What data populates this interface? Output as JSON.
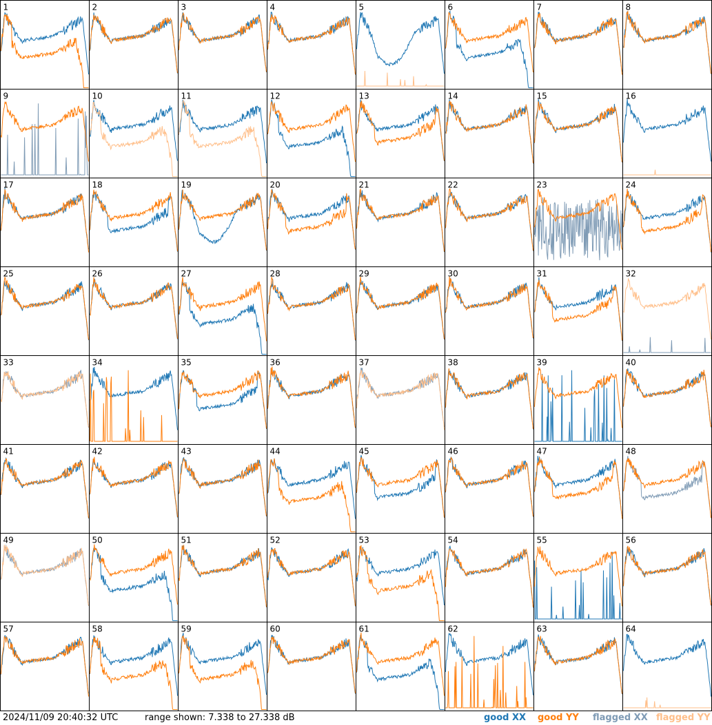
{
  "chart_data": {
    "type": "line",
    "layout": "8x8 small multiples",
    "timestamp": "2024/11/09 20:40:32 UTC",
    "range_text": "range shown: 7.338 to 27.338 dB",
    "ylim": [
      7.338,
      27.338
    ],
    "units": "dB",
    "legend": [
      {
        "key": "good_xx",
        "label": "good XX",
        "color": "#1f77b4"
      },
      {
        "key": "good_yy",
        "label": "good YY",
        "color": "#ff7f0e"
      },
      {
        "key": "flagged_xx",
        "label": "flagged XX",
        "color": "#7f9bb5"
      },
      {
        "key": "flagged_yy",
        "label": "flagged YY",
        "color": "#ffbf8a"
      }
    ],
    "panels": [
      {
        "id": "1",
        "xx": "good",
        "yy": "good",
        "shape_xx": "normal",
        "shape_yy": "dropout"
      },
      {
        "id": "2",
        "xx": "good",
        "yy": "good",
        "shape_xx": "normal",
        "shape_yy": "normal"
      },
      {
        "id": "3",
        "xx": "good",
        "yy": "good",
        "shape_xx": "normal",
        "shape_yy": "normal"
      },
      {
        "id": "4",
        "xx": "good",
        "yy": "good",
        "shape_xx": "normal",
        "shape_yy": "normal"
      },
      {
        "id": "5",
        "xx": "good",
        "yy": "flagged",
        "shape_xx": "dip",
        "shape_yy": "flat"
      },
      {
        "id": "6",
        "xx": "good",
        "yy": "good",
        "shape_xx": "dropout",
        "shape_yy": "normal"
      },
      {
        "id": "7",
        "xx": "good",
        "yy": "good",
        "shape_xx": "normal",
        "shape_yy": "normal"
      },
      {
        "id": "8",
        "xx": "good",
        "yy": "good",
        "shape_xx": "normal",
        "shape_yy": "normal"
      },
      {
        "id": "9",
        "xx": "flagged",
        "yy": "good",
        "shape_xx": "spiky_low",
        "shape_yy": "normal"
      },
      {
        "id": "10",
        "xx": "good",
        "yy": "flagged",
        "shape_xx": "normal",
        "shape_yy": "dropout"
      },
      {
        "id": "11",
        "xx": "good",
        "yy": "flagged",
        "shape_xx": "normal",
        "shape_yy": "dropout"
      },
      {
        "id": "12",
        "xx": "good",
        "yy": "good",
        "shape_xx": "dropout",
        "shape_yy": "normal"
      },
      {
        "id": "13",
        "xx": "good",
        "yy": "good",
        "shape_xx": "normal",
        "shape_yy": "low"
      },
      {
        "id": "14",
        "xx": "good",
        "yy": "good",
        "shape_xx": "normal",
        "shape_yy": "normal"
      },
      {
        "id": "15",
        "xx": "good",
        "yy": "good",
        "shape_xx": "normal",
        "shape_yy": "normal"
      },
      {
        "id": "16",
        "xx": "good",
        "yy": "flagged",
        "shape_xx": "normal",
        "shape_yy": "flat"
      },
      {
        "id": "17",
        "xx": "good",
        "yy": "good",
        "shape_xx": "normal",
        "shape_yy": "normal"
      },
      {
        "id": "18",
        "xx": "good",
        "yy": "good",
        "shape_xx": "low",
        "shape_yy": "normal"
      },
      {
        "id": "19",
        "xx": "good",
        "yy": "good",
        "shape_xx": "dip",
        "shape_yy": "normal"
      },
      {
        "id": "20",
        "xx": "good",
        "yy": "good",
        "shape_xx": "normal",
        "shape_yy": "low"
      },
      {
        "id": "21",
        "xx": "good",
        "yy": "good",
        "shape_xx": "normal",
        "shape_yy": "normal"
      },
      {
        "id": "22",
        "xx": "good",
        "yy": "good",
        "shape_xx": "normal",
        "shape_yy": "normal"
      },
      {
        "id": "23",
        "xx": "flagged",
        "yy": "good",
        "shape_xx": "spiky",
        "shape_yy": "normal"
      },
      {
        "id": "24",
        "xx": "good",
        "yy": "good",
        "shape_xx": "normal",
        "shape_yy": "low"
      },
      {
        "id": "25",
        "xx": "good",
        "yy": "good",
        "shape_xx": "normal",
        "shape_yy": "normal"
      },
      {
        "id": "26",
        "xx": "good",
        "yy": "good",
        "shape_xx": "normal",
        "shape_yy": "normal"
      },
      {
        "id": "27",
        "xx": "good",
        "yy": "good",
        "shape_xx": "dropout",
        "shape_yy": "normal"
      },
      {
        "id": "28",
        "xx": "good",
        "yy": "good",
        "shape_xx": "normal",
        "shape_yy": "normal"
      },
      {
        "id": "29",
        "xx": "good",
        "yy": "good",
        "shape_xx": "normal",
        "shape_yy": "normal"
      },
      {
        "id": "30",
        "xx": "good",
        "yy": "good",
        "shape_xx": "normal",
        "shape_yy": "normal"
      },
      {
        "id": "31",
        "xx": "good",
        "yy": "good",
        "shape_xx": "normal",
        "shape_yy": "low"
      },
      {
        "id": "32",
        "xx": "flagged",
        "yy": "flagged",
        "shape_xx": "flat",
        "shape_yy": "normal"
      },
      {
        "id": "33",
        "xx": "flagged",
        "yy": "flagged",
        "shape_xx": "normal",
        "shape_yy": "normal"
      },
      {
        "id": "34",
        "xx": "good",
        "yy": "good",
        "shape_xx": "normal",
        "shape_yy": "spiky_low"
      },
      {
        "id": "35",
        "xx": "good",
        "yy": "good",
        "shape_xx": "low",
        "shape_yy": "normal"
      },
      {
        "id": "36",
        "xx": "good",
        "yy": "good",
        "shape_xx": "normal",
        "shape_yy": "normal"
      },
      {
        "id": "37",
        "xx": "flagged",
        "yy": "flagged",
        "shape_xx": "normal",
        "shape_yy": "normal"
      },
      {
        "id": "38",
        "xx": "good",
        "yy": "good",
        "shape_xx": "normal",
        "shape_yy": "normal"
      },
      {
        "id": "39",
        "xx": "good",
        "yy": "good",
        "shape_xx": "spiky_low",
        "shape_yy": "normal"
      },
      {
        "id": "40",
        "xx": "good",
        "yy": "good",
        "shape_xx": "normal",
        "shape_yy": "normal"
      },
      {
        "id": "41",
        "xx": "good",
        "yy": "good",
        "shape_xx": "normal",
        "shape_yy": "normal"
      },
      {
        "id": "42",
        "xx": "good",
        "yy": "good",
        "shape_xx": "normal",
        "shape_yy": "normal"
      },
      {
        "id": "43",
        "xx": "good",
        "yy": "good",
        "shape_xx": "normal",
        "shape_yy": "normal"
      },
      {
        "id": "44",
        "xx": "good",
        "yy": "good",
        "shape_xx": "normal",
        "shape_yy": "dropout"
      },
      {
        "id": "45",
        "xx": "good",
        "yy": "good",
        "shape_xx": "low",
        "shape_yy": "normal"
      },
      {
        "id": "46",
        "xx": "good",
        "yy": "good",
        "shape_xx": "normal",
        "shape_yy": "normal"
      },
      {
        "id": "47",
        "xx": "good",
        "yy": "good",
        "shape_xx": "normal",
        "shape_yy": "low"
      },
      {
        "id": "48",
        "xx": "flagged",
        "yy": "good",
        "shape_xx": "low",
        "shape_yy": "normal"
      },
      {
        "id": "49",
        "xx": "flagged",
        "yy": "flagged",
        "shape_xx": "normal",
        "shape_yy": "normal"
      },
      {
        "id": "50",
        "xx": "good",
        "yy": "good",
        "shape_xx": "dropout",
        "shape_yy": "normal"
      },
      {
        "id": "51",
        "xx": "good",
        "yy": "good",
        "shape_xx": "normal",
        "shape_yy": "normal"
      },
      {
        "id": "52",
        "xx": "good",
        "yy": "good",
        "shape_xx": "normal",
        "shape_yy": "normal"
      },
      {
        "id": "53",
        "xx": "good",
        "yy": "good",
        "shape_xx": "normal",
        "shape_yy": "dropout"
      },
      {
        "id": "54",
        "xx": "good",
        "yy": "good",
        "shape_xx": "normal",
        "shape_yy": "normal"
      },
      {
        "id": "55",
        "xx": "good",
        "yy": "good",
        "shape_xx": "spiky_low",
        "shape_yy": "normal"
      },
      {
        "id": "56",
        "xx": "good",
        "yy": "good",
        "shape_xx": "normal",
        "shape_yy": "normal"
      },
      {
        "id": "57",
        "xx": "good",
        "yy": "good",
        "shape_xx": "normal",
        "shape_yy": "normal"
      },
      {
        "id": "58",
        "xx": "good",
        "yy": "good",
        "shape_xx": "normal",
        "shape_yy": "dropout"
      },
      {
        "id": "59",
        "xx": "good",
        "yy": "good",
        "shape_xx": "normal",
        "shape_yy": "dropout"
      },
      {
        "id": "60",
        "xx": "good",
        "yy": "good",
        "shape_xx": "normal",
        "shape_yy": "normal"
      },
      {
        "id": "61",
        "xx": "good",
        "yy": "good",
        "shape_xx": "dropout",
        "shape_yy": "normal"
      },
      {
        "id": "62",
        "xx": "good",
        "yy": "good",
        "shape_xx": "normal",
        "shape_yy": "spiky_low"
      },
      {
        "id": "63",
        "xx": "good",
        "yy": "good",
        "shape_xx": "normal",
        "shape_yy": "normal"
      },
      {
        "id": "64",
        "xx": "good",
        "yy": "flagged",
        "shape_xx": "normal",
        "shape_yy": "flat"
      }
    ]
  }
}
